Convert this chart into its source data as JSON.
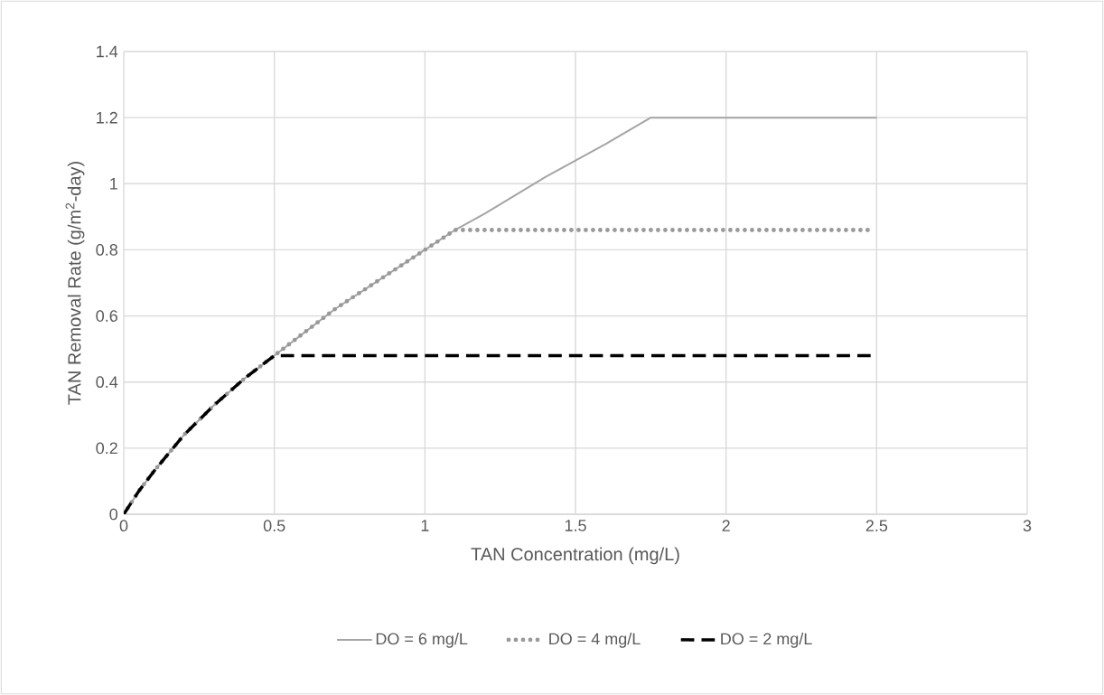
{
  "chart_data": {
    "type": "line",
    "xlabel": "TAN Concentration (mg/L)",
    "ylabel": "TAN Removal Rate (g/m$^{2}$-day)",
    "xlim": [
      0,
      3
    ],
    "ylim": [
      0,
      1.4
    ],
    "xticks": [
      0,
      0.5,
      1,
      1.5,
      2,
      2.5,
      3
    ],
    "yticks": [
      0,
      0.2,
      0.4,
      0.6,
      0.8,
      1,
      1.2,
      1.4
    ],
    "grid": true,
    "legend": "bottom",
    "marker": "none",
    "series": [
      {
        "name": "DO = 6 mg/L",
        "color": "#a5a5a5",
        "line_style": "solid",
        "x": [
          0,
          0.05,
          0.1,
          0.2,
          0.3,
          0.4,
          0.5,
          0.6,
          0.7,
          0.8,
          0.9,
          1.0,
          1.1,
          1.2,
          1.4,
          1.6,
          1.75,
          2.5
        ],
        "values": [
          0,
          0.07,
          0.13,
          0.24,
          0.33,
          0.41,
          0.48,
          0.55,
          0.62,
          0.68,
          0.74,
          0.8,
          0.86,
          0.91,
          1.02,
          1.12,
          1.2,
          1.2
        ]
      },
      {
        "name": "DO = 4 mg/L",
        "color": "#999999",
        "line_style": "dotted",
        "x": [
          0,
          0.05,
          0.1,
          0.2,
          0.3,
          0.4,
          0.5,
          0.6,
          0.7,
          0.8,
          0.9,
          1.0,
          1.1,
          2.48
        ],
        "values": [
          0,
          0.07,
          0.13,
          0.24,
          0.33,
          0.41,
          0.48,
          0.55,
          0.62,
          0.68,
          0.74,
          0.8,
          0.86,
          0.86
        ]
      },
      {
        "name": "DO = 2 mg/L",
        "color": "#000000",
        "line_style": "dashed",
        "x": [
          0,
          0.05,
          0.1,
          0.2,
          0.3,
          0.4,
          0.5,
          2.48
        ],
        "values": [
          0,
          0.07,
          0.13,
          0.24,
          0.33,
          0.41,
          0.48,
          0.48
        ]
      }
    ]
  }
}
